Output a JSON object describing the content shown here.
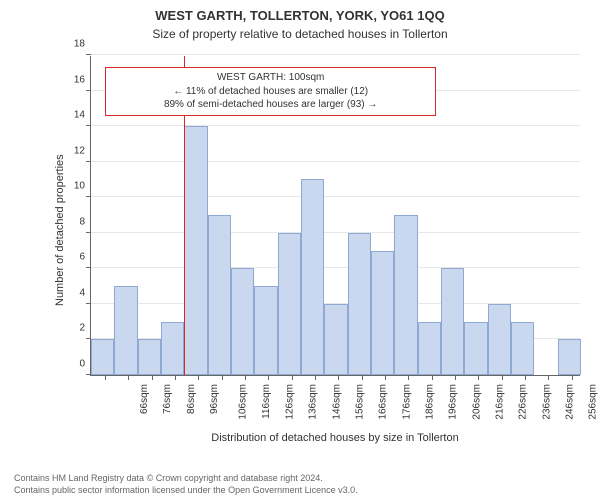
{
  "title": "WEST GARTH, TOLLERTON, YORK, YO61 1QQ",
  "subtitle": "Size of property relative to detached houses in Tollerton",
  "title_fontsize": 13,
  "subtitle_fontsize": 12,
  "chart": {
    "type": "histogram",
    "background_color": "#ffffff",
    "grid_color": "#e6e6e6",
    "axis_color": "#666666",
    "bar_fill": "#c9d8ef",
    "bar_stroke": "#8fa9d4",
    "bar_stroke_width": 1,
    "ylabel": "Number of detached properties",
    "xlabel": "Distribution of detached houses by size in Tollerton",
    "label_fontsize": 11,
    "tick_fontsize": 10,
    "ylim": [
      0,
      18
    ],
    "ytick_step": 2,
    "x_axis_start": 60,
    "x_axis_end": 270,
    "x_tick_start": 66,
    "x_tick_step": 10,
    "x_tick_count": 21,
    "x_tick_suffix": "sqm",
    "bar_width_units": 10,
    "bars": [
      {
        "x": 60,
        "y": 2
      },
      {
        "x": 70,
        "y": 5
      },
      {
        "x": 80,
        "y": 2
      },
      {
        "x": 90,
        "y": 3
      },
      {
        "x": 100,
        "y": 14
      },
      {
        "x": 110,
        "y": 9
      },
      {
        "x": 120,
        "y": 6
      },
      {
        "x": 130,
        "y": 5
      },
      {
        "x": 140,
        "y": 8
      },
      {
        "x": 150,
        "y": 11
      },
      {
        "x": 160,
        "y": 4
      },
      {
        "x": 170,
        "y": 8
      },
      {
        "x": 180,
        "y": 7
      },
      {
        "x": 190,
        "y": 9
      },
      {
        "x": 200,
        "y": 3
      },
      {
        "x": 210,
        "y": 6
      },
      {
        "x": 220,
        "y": 3
      },
      {
        "x": 230,
        "y": 4
      },
      {
        "x": 240,
        "y": 3
      },
      {
        "x": 250,
        "y": 0
      },
      {
        "x": 260,
        "y": 2
      }
    ],
    "marker": {
      "x": 100,
      "color": "#d92626",
      "width": 1
    },
    "annotation": {
      "border_color": "#d92626",
      "border_width": 1,
      "background": "#ffffff",
      "fontsize": 10,
      "y_center": 16,
      "x_left_units": 66,
      "x_right_units": 208,
      "lines": [
        "WEST GARTH: 100sqm",
        "← 11% of detached houses are smaller (12)",
        "89% of semi-detached houses are larger (93) →"
      ]
    }
  },
  "footer": {
    "line1": "Contains HM Land Registry data © Crown copyright and database right 2024.",
    "line2": "Contains public sector information licensed under the Open Government Licence v3.0.",
    "fontsize": 9,
    "color": "#666666"
  }
}
